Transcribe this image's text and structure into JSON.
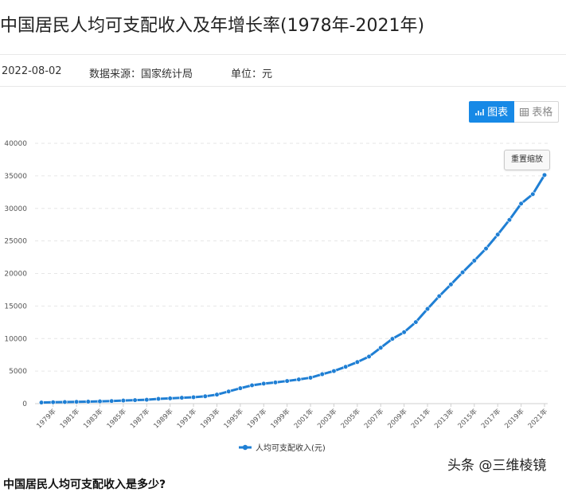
{
  "page": {
    "title": "中国居民人均可支配收入及年增长率(1978年-2021年)",
    "date": "2022-08-02",
    "source": "数据来源：国家统计局",
    "unit": "单位：元",
    "next_heading": "中国居民人均可支配收入是多少?",
    "watermark": "头条 @三维棱镜"
  },
  "tabs": {
    "chart": "图表",
    "table": "表格",
    "chart_icon": "chart-icon",
    "table_icon": "table-icon"
  },
  "toolbox": {
    "reset_zoom": "重置缩放"
  },
  "colors": {
    "accent": "#1789e6",
    "series": "#1f7fd4"
  },
  "chart_data": {
    "type": "line",
    "x": [
      "1978年",
      "1979年",
      "1980年",
      "1981年",
      "1982年",
      "1983年",
      "1984年",
      "1985年",
      "1986年",
      "1987年",
      "1988年",
      "1989年",
      "1990年",
      "1991年",
      "1992年",
      "1993年",
      "1994年",
      "1995年",
      "1996年",
      "1997年",
      "1998年",
      "1999年",
      "2000年",
      "2001年",
      "2002年",
      "2003年",
      "2004年",
      "2005年",
      "2006年",
      "2007年",
      "2008年",
      "2009年",
      "2010年",
      "2011年",
      "2012年",
      "2013年",
      "2014年",
      "2015年",
      "2016年",
      "2017年",
      "2018年",
      "2019年",
      "2020年",
      "2021年"
    ],
    "x_tick_labels": [
      "1979年",
      "1981年",
      "1983年",
      "1985年",
      "1987年",
      "1989年",
      "1991年",
      "1993年",
      "1995年",
      "1997年",
      "1999年",
      "2001年",
      "2003年",
      "2005年",
      "2007年",
      "2009年",
      "2011年",
      "2013年",
      "2015年",
      "2017年",
      "2019年",
      "2021年"
    ],
    "series": [
      {
        "name": "人均可支配收入(元)",
        "values": [
          171,
          212,
          247,
          270,
          308,
          346,
          397,
          478,
          534,
          598,
          737,
          812,
          904,
          976,
          1125,
          1385,
          1870,
          2363,
          2814,
          3070,
          3254,
          3478,
          3721,
          3983,
          4519,
          5007,
          5661,
          6385,
          7229,
          8584,
          9957,
          10977,
          12520,
          14551,
          16510,
          18311,
          20167,
          21966,
          23821,
          25974,
          28228,
          30733,
          32189,
          35128
        ]
      }
    ],
    "yticks": [
      0,
      5000,
      10000,
      15000,
      20000,
      25000,
      30000,
      35000,
      40000
    ],
    "ylim": [
      0,
      40000
    ],
    "grid": true,
    "legend_position": "bottom-center"
  }
}
